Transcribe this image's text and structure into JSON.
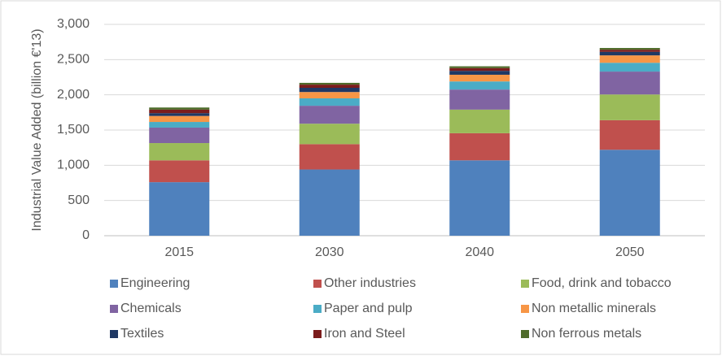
{
  "chart_data": {
    "type": "stacked_bar",
    "ylabel": "Industrial Value Added (billion €'13)",
    "categories": [
      "2015",
      "2030",
      "2040",
      "2050"
    ],
    "series": [
      {
        "name": "Engineering",
        "color": "#4f81bd",
        "values": [
          760,
          940,
          1070,
          1220
        ]
      },
      {
        "name": "Other industries",
        "color": "#c0504d",
        "values": [
          310,
          360,
          385,
          420
        ]
      },
      {
        "name": "Food, drink and tobacco",
        "color": "#9bbb59",
        "values": [
          245,
          290,
          335,
          365
        ]
      },
      {
        "name": "Chemicals",
        "color": "#8064a2",
        "values": [
          220,
          255,
          285,
          325
        ]
      },
      {
        "name": "Paper and pulp",
        "color": "#4bacc6",
        "values": [
          80,
          105,
          115,
          125
        ]
      },
      {
        "name": "Non metallic minerals",
        "color": "#f79646",
        "values": [
          85,
          90,
          95,
          105
        ]
      },
      {
        "name": "Textiles",
        "color": "#1f3864",
        "values": [
          40,
          60,
          55,
          50
        ]
      },
      {
        "name": "Iron and Steel",
        "color": "#7b1c1c",
        "values": [
          50,
          45,
          40,
          30
        ]
      },
      {
        "name": "Non ferrous metals",
        "color": "#4e6b2a",
        "values": [
          30,
          25,
          25,
          25
        ]
      }
    ],
    "ylim": [
      0,
      3000
    ],
    "yticks": [
      0,
      500,
      {
        "value": 1000,
        "label": "1,000"
      },
      {
        "value": 1500,
        "label": "1,500"
      },
      {
        "value": 2000,
        "label": "2,000"
      },
      {
        "value": 2500,
        "label": "2,500"
      },
      {
        "value": 3000,
        "label": "3,000"
      }
    ],
    "grid": true,
    "legend": "bottom"
  }
}
